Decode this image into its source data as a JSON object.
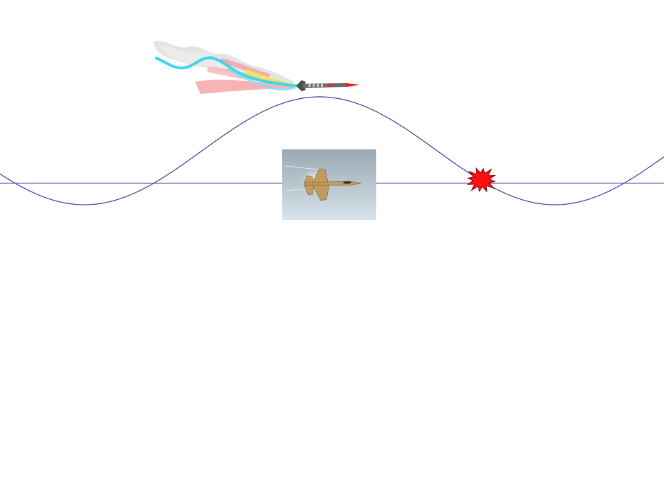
{
  "scene": {
    "background_color": "#ffffff",
    "axis_color": "#6a2c8c",
    "wave_color": "#3a3a9e",
    "wave_periods_visible": 1.5,
    "missile": {
      "icon": "missile-icon",
      "body_color": "#6b6b6b",
      "nose_color": "#e22020",
      "exhaust_colors": [
        "#39d6ef",
        "#f59a9a",
        "#f3e267",
        "#cfcfcf"
      ]
    },
    "jet": {
      "icon": "fighter-jet-photo",
      "sky_color": "#b7c6cf",
      "aircraft_color": "#c9a46b"
    },
    "explosion": {
      "icon": "explosion-burst-icon",
      "fill_color": "#ff1010",
      "stroke_color": "#800000"
    }
  }
}
